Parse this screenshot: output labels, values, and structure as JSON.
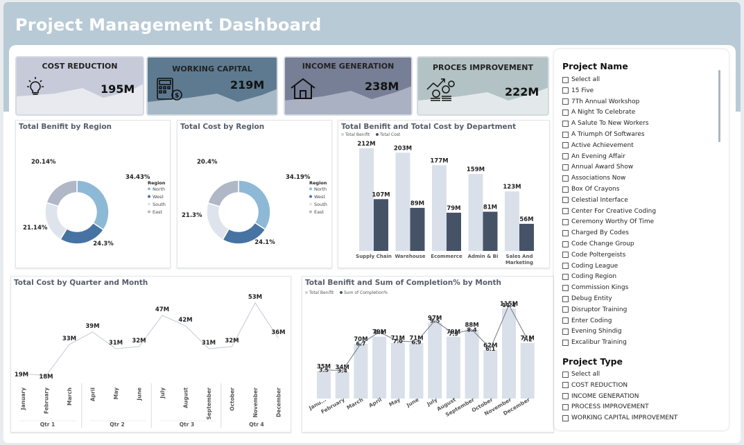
{
  "header": {
    "title": "Project Management Dashboard"
  },
  "kpis": [
    {
      "label": "COST REDUCTION",
      "value": "195M",
      "icon": "lightbulb-icon"
    },
    {
      "label": "WORKING CAPITAL",
      "value": "219M",
      "icon": "calculator-icon"
    },
    {
      "label": "INCOME GENERATION",
      "value": "238M",
      "icon": "house-icon"
    },
    {
      "label": "PROCES IMPROVEMENT",
      "value": "222M",
      "icon": "money-growth-icon"
    }
  ],
  "colors": {
    "north": "#8eb9d6",
    "west": "#4673a2",
    "south": "#dfe4ec",
    "east": "#b0b7c6",
    "bar_light": "#d9e0ea",
    "bar_dark": "#465367"
  },
  "panels": {
    "benefit_region": {
      "title": "Total Benifit by Region"
    },
    "cost_region": {
      "title": "Total Cost by Region"
    },
    "dept": {
      "title": "Total Benifit and Total Cost by Department"
    },
    "quarter": {
      "title": "Total Cost by Quarter and Month"
    },
    "month": {
      "title": "Total Benifit and Sum of Completion% by Month"
    }
  },
  "chart_data": [
    {
      "type": "pie",
      "title": "Total Benifit by Region",
      "legend_title": "Region",
      "categories": [
        "North",
        "West",
        "South",
        "East"
      ],
      "values": [
        34.43,
        24.3,
        21.14,
        20.14
      ],
      "labels": [
        "34.43%",
        "24.3%",
        "21.14%",
        "20.14%"
      ]
    },
    {
      "type": "pie",
      "title": "Total Cost by Region",
      "legend_title": "Region",
      "categories": [
        "North",
        "West",
        "South",
        "East"
      ],
      "values": [
        34.19,
        24.1,
        21.3,
        20.4
      ],
      "labels": [
        "34.19%",
        "24.1%",
        "21.3%",
        "20.4%"
      ]
    },
    {
      "type": "bar",
      "title": "Total Benifit and Total Cost by Department",
      "categories": [
        "Supply Chain",
        "Warehouse",
        "Ecommerce",
        "Admin & Bi",
        "Sales And Marketing"
      ],
      "series": [
        {
          "name": "Total Benifit",
          "values": [
            212,
            203,
            177,
            159,
            123
          ],
          "labels": [
            "212M",
            "203M",
            "177M",
            "159M",
            "123M"
          ]
        },
        {
          "name": "Total Cost",
          "values": [
            107,
            89,
            79,
            81,
            56
          ],
          "labels": [
            "107M",
            "89M",
            "79M",
            "81M",
            "56M"
          ]
        }
      ]
    },
    {
      "type": "line",
      "title": "Total Cost by Quarter and Month",
      "categories": [
        "January",
        "February",
        "March",
        "April",
        "May",
        "June",
        "July",
        "August",
        "September",
        "October",
        "November",
        "December"
      ],
      "quarters": [
        "Qtr 1",
        "Qtr 2",
        "Qtr 3",
        "Qtr 4"
      ],
      "values": [
        19,
        18,
        33,
        39,
        31,
        32,
        47,
        42,
        31,
        32,
        53,
        36
      ],
      "labels": [
        "19M",
        "18M",
        "33M",
        "39M",
        "31M",
        "32M",
        "47M",
        "42M",
        "31M",
        "32M",
        "53M",
        "36M"
      ]
    },
    {
      "type": "bar",
      "title": "Total Benifit and Sum of Completion% by Month",
      "categories": [
        "January",
        "February",
        "March",
        "April",
        "May",
        "June",
        "July",
        "August",
        "September",
        "October",
        "November",
        "December"
      ],
      "tick_labels": [
        "Janu...",
        "February",
        "March",
        "April",
        "May",
        "June",
        "July",
        "August",
        "September",
        "October",
        "November",
        "December"
      ],
      "series": [
        {
          "name": "Total Benifit",
          "values": [
            35,
            34,
            70,
            79,
            71,
            71,
            97,
            79,
            88,
            62,
            115,
            71
          ],
          "labels": [
            "35M",
            "34M",
            "70M",
            "79M",
            "71M",
            "71M",
            "97M",
            "79M",
            "88M",
            "62M",
            "115M",
            "71M"
          ]
        },
        {
          "name": "Sum of Completion%",
          "type": "line",
          "values": [
            3.5,
            3.4,
            6.7,
            8.1,
            7.0,
            6.9,
            9.5,
            7.9,
            8.4,
            6.1,
            11.4,
            7.2
          ],
          "labels": [
            "3.5",
            "3.4",
            "6.7",
            "8.1",
            "7.0",
            "6.9",
            "9.5",
            "7.9",
            "8.4",
            "6.1",
            "11.4",
            "7.2"
          ]
        }
      ]
    }
  ],
  "slicer": {
    "project_name": {
      "title": "Project Name",
      "items": [
        "Select all",
        "15 Five",
        "7Th Annual Workshop",
        "A Night To Celebrate",
        "A Salute To New Workers",
        "A Triumph Of Softwares",
        "Active Achievement",
        "An Evening Affair",
        "Annual Award Show",
        "Associations Now",
        "Box Of Crayons",
        "Celestial Interface",
        "Center For Creative Coding",
        "Ceremony Worthy Of Time",
        "Charged By Codes",
        "Code Change Group",
        "Code Poltergeists",
        "Coding League",
        "Coding Region",
        "Commission Kings",
        "Debug Entity",
        "Disruptor Training",
        "Enter Coding",
        "Evening Shindig",
        "Excalibur Training"
      ]
    },
    "project_type": {
      "title": "Project Type",
      "items": [
        "Select all",
        "COST REDUCTION",
        "INCOME GENERATION",
        "PROCESS IMPROVEMENT",
        "WORKING CAPITAL IMPROVEMENT"
      ]
    }
  }
}
